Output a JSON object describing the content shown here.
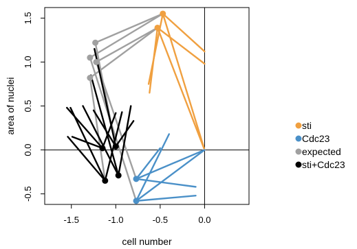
{
  "chart_data": {
    "type": "line",
    "xlabel": "cell number",
    "ylabel": "area of nuclei",
    "xlim": [
      -1.8,
      0.5
    ],
    "ylim": [
      -0.62,
      1.62
    ],
    "x_ticks": [
      -1.5,
      -1.0,
      -0.5,
      0.0
    ],
    "x_tick_labels": [
      "-1.5",
      "-1.0",
      "-0.5",
      "0.0"
    ],
    "y_ticks": [
      -0.5,
      0.0,
      0.5,
      1.0,
      1.5
    ],
    "y_tick_labels": [
      "-0.5",
      "0.0",
      "0.5",
      "1.0",
      "1.5"
    ],
    "reference_lines": {
      "x": 0,
      "y": 0
    },
    "legend_position": "right",
    "series": [
      {
        "name": "sti",
        "color": "#F0A040",
        "points": [
          [
            -0.47,
            1.55
          ],
          [
            -0.53,
            1.39
          ]
        ],
        "segments": [
          [
            [
              -0.47,
              1.55
            ],
            [
              0.0,
              1.12
            ]
          ],
          [
            [
              -0.47,
              1.55
            ],
            [
              -0.63,
              0.75
            ]
          ],
          [
            [
              -0.47,
              1.55
            ],
            [
              0.0,
              0.0
            ]
          ],
          [
            [
              -0.53,
              1.39
            ],
            [
              0.0,
              0.98
            ]
          ],
          [
            [
              -0.53,
              1.39
            ],
            [
              -0.62,
              0.65
            ]
          ],
          [
            [
              -0.53,
              1.39
            ],
            [
              0.0,
              0.0
            ]
          ]
        ]
      },
      {
        "name": "Cdc23",
        "color": "#4A90C8",
        "points": [
          [
            -0.77,
            -0.33
          ],
          [
            -0.77,
            -0.58
          ]
        ],
        "segments": [
          [
            [
              -0.77,
              -0.33
            ],
            [
              0.0,
              0.0
            ]
          ],
          [
            [
              -0.77,
              -0.33
            ],
            [
              -0.1,
              -0.42
            ]
          ],
          [
            [
              -0.77,
              -0.33
            ],
            [
              -0.5,
              0.02
            ]
          ],
          [
            [
              -0.77,
              -0.58
            ],
            [
              0.0,
              0.0
            ]
          ],
          [
            [
              -0.77,
              -0.58
            ],
            [
              -0.1,
              -0.52
            ]
          ],
          [
            [
              -0.77,
              -0.58
            ],
            [
              -0.4,
              0.18
            ]
          ]
        ]
      },
      {
        "name": "expected",
        "color": "#A0A0A0",
        "points": [
          [
            -1.23,
            1.22
          ],
          [
            -1.29,
            1.05
          ],
          [
            -1.22,
            1.0
          ],
          [
            -1.29,
            0.82
          ]
        ],
        "segments": [
          [
            [
              -1.23,
              1.22
            ],
            [
              -0.47,
              1.55
            ]
          ],
          [
            [
              -1.29,
              1.05
            ],
            [
              -0.47,
              1.55
            ]
          ],
          [
            [
              -1.22,
              1.0
            ],
            [
              -0.53,
              1.39
            ]
          ],
          [
            [
              -1.29,
              0.82
            ],
            [
              -0.53,
              1.39
            ]
          ],
          [
            [
              -1.23,
              1.22
            ],
            [
              -1.0,
              0.03
            ]
          ],
          [
            [
              -1.29,
              1.05
            ],
            [
              -0.77,
              -0.58
            ]
          ],
          [
            [
              -1.22,
              1.0
            ],
            [
              -0.77,
              -0.33
            ]
          ],
          [
            [
              -1.29,
              0.82
            ],
            [
              -1.12,
              -0.35
            ]
          ]
        ]
      },
      {
        "name": "sti+Cdc23",
        "color": "#000000",
        "points": [
          [
            -1.15,
            0.02
          ],
          [
            -1.0,
            0.04
          ],
          [
            -1.12,
            -0.35
          ],
          [
            -0.97,
            -0.29
          ]
        ],
        "segments": [
          [
            [
              -1.15,
              0.02
            ],
            [
              -1.55,
              0.48
            ]
          ],
          [
            [
              -1.15,
              0.02
            ],
            [
              -1.49,
              0.15
            ]
          ],
          [
            [
              -1.15,
              0.02
            ],
            [
              -1.0,
              0.42
            ]
          ],
          [
            [
              -1.0,
              0.04
            ],
            [
              -1.25,
              0.45
            ]
          ],
          [
            [
              -1.0,
              0.04
            ],
            [
              -0.8,
              0.33
            ]
          ],
          [
            [
              -1.0,
              0.04
            ],
            [
              -1.24,
              1.15
            ]
          ],
          [
            [
              -1.12,
              -0.35
            ],
            [
              -1.51,
              0.48
            ]
          ],
          [
            [
              -1.12,
              -0.35
            ],
            [
              -1.54,
              0.15
            ]
          ],
          [
            [
              -1.12,
              -0.35
            ],
            [
              -0.93,
              0.43
            ]
          ],
          [
            [
              -0.97,
              -0.29
            ],
            [
              -1.37,
              0.5
            ]
          ],
          [
            [
              -0.97,
              -0.29
            ],
            [
              -1.28,
              0.85
            ]
          ],
          [
            [
              -0.97,
              -0.29
            ],
            [
              -0.83,
              0.5
            ]
          ]
        ]
      }
    ]
  }
}
